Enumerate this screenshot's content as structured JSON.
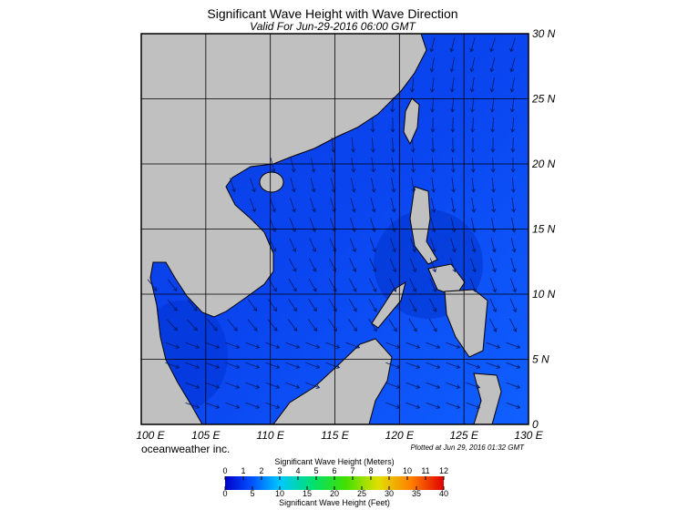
{
  "header": {
    "title": "Significant Wave Height with Wave Direction",
    "subtitle": "Valid For Jun-29-2016 06:00 GMT"
  },
  "map": {
    "lon_labels": [
      "100 E",
      "105 E",
      "110 E",
      "115 E",
      "120 E",
      "125 E",
      "130 E"
    ],
    "lat_labels": [
      "0",
      "5 N",
      "10 N",
      "15 N",
      "20 N",
      "25 N",
      "30 N"
    ]
  },
  "footer": {
    "credit": "oceanweather inc.",
    "plotted": "Plotted at Jun 29, 2016 01:32 GMT"
  },
  "legend": {
    "meters_title": "Significant Wave Height (Meters)",
    "meters_ticks": [
      0,
      1,
      2,
      3,
      4,
      5,
      6,
      7,
      8,
      9,
      10,
      11,
      12
    ],
    "feet_ticks": [
      0,
      5,
      10,
      15,
      20,
      25,
      30,
      35,
      40
    ],
    "feet_title": "Significant Wave Height (Feet)"
  }
}
